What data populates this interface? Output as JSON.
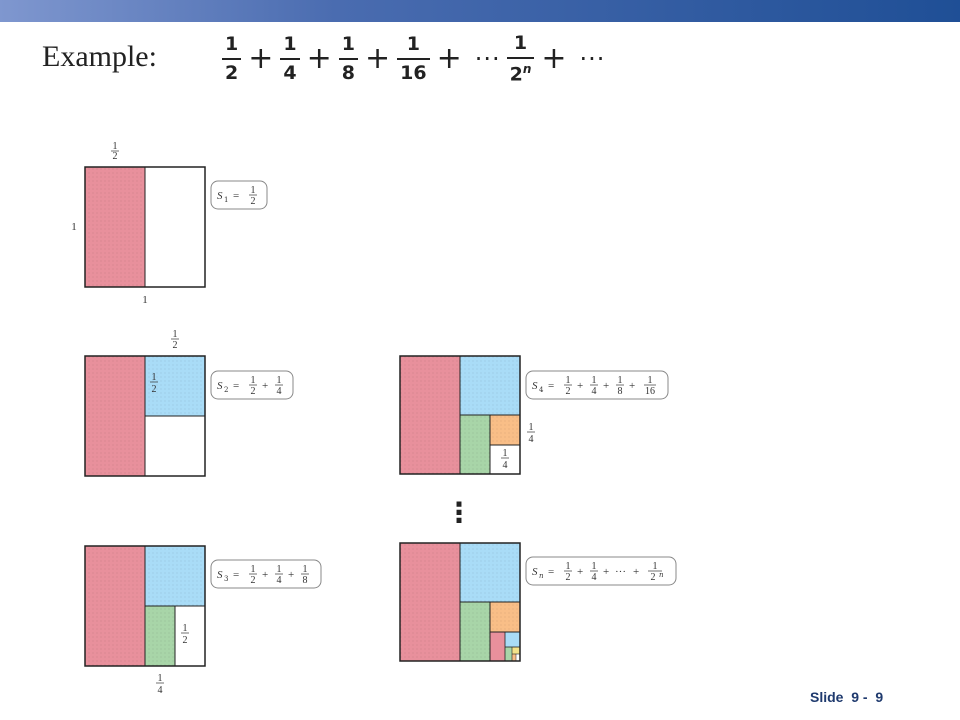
{
  "slide": {
    "title": "Example:",
    "footer": "Slide  9 -  9"
  },
  "formula": {
    "terms": [
      {
        "num": "1",
        "den": "2"
      },
      {
        "num": "1",
        "den": "4"
      },
      {
        "num": "1",
        "den": "8"
      },
      {
        "num": "1",
        "den": "16"
      }
    ],
    "plus": "+",
    "ellipsis": "···",
    "general_term": {
      "num": "1",
      "den": "2",
      "exp": "n"
    }
  },
  "figures": [
    {
      "id": "S1",
      "sum_lhs": "S",
      "sum_index": "1",
      "sum_terms": [
        "1/2"
      ],
      "side_label_top": "1/2",
      "side_label_left": "1",
      "side_label_bottom": "1"
    },
    {
      "id": "S2",
      "sum_lhs": "S",
      "sum_index": "2",
      "sum_terms": [
        "1/2",
        "1/4"
      ],
      "side_label_top": "1/2",
      "inner_label": "1/2"
    },
    {
      "id": "S3",
      "sum_lhs": "S",
      "sum_index": "3",
      "sum_terms": [
        "1/2",
        "1/4",
        "1/8"
      ],
      "side_label_right": "1/2",
      "side_label_bottom": "1/4"
    },
    {
      "id": "S4",
      "sum_lhs": "S",
      "sum_index": "4",
      "sum_terms": [
        "1/2",
        "1/4",
        "1/8",
        "1/16"
      ],
      "side_label_right": "1/4",
      "inner_label": "1/4"
    },
    {
      "id": "Sn",
      "sum_lhs": "S",
      "sum_index": "n",
      "sum_terms": [
        "1/2",
        "1/4",
        "···",
        "1/2^n"
      ]
    }
  ],
  "vertical_ellipsis": "⋮",
  "colors": {
    "pink": "#e8909c",
    "blue": "#a9dcf7",
    "green": "#a8d5a8",
    "orange": "#f9be87",
    "yellow": "#f3e28a",
    "outline": "#222222",
    "box_outline": "#888888"
  }
}
